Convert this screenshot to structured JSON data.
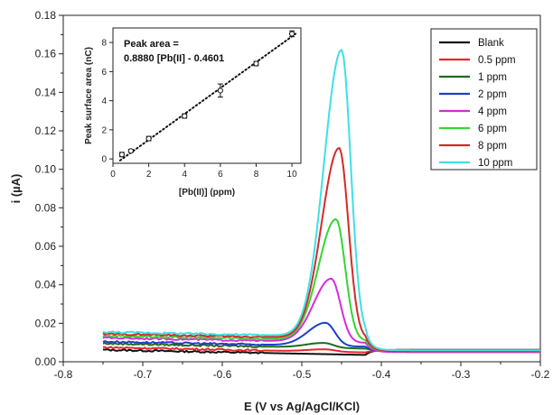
{
  "chart_data": [
    {
      "type": "line",
      "xlabel": "E (V vs Ag/AgCl/KCl)",
      "ylabel": "i (µA)",
      "xlim": [
        -0.8,
        -0.2
      ],
      "ylim": [
        0,
        0.18
      ],
      "x_ticks": [
        "-0.8",
        "-0.7",
        "-0.6",
        "-0.5",
        "-0.4",
        "-0.3",
        "-0.2"
      ],
      "x_tick_values": [
        -0.8,
        -0.7,
        -0.6,
        -0.5,
        -0.4,
        -0.3,
        -0.2
      ],
      "y_ticks": [
        "0.00",
        "0.02",
        "0.04",
        "0.06",
        "0.08",
        "0.10",
        "0.12",
        "0.14",
        "0.16",
        "0.18"
      ],
      "y_tick_values": [
        0,
        0.02,
        0.04,
        0.06,
        0.08,
        0.1,
        0.12,
        0.14,
        0.16,
        0.18
      ],
      "grid": false,
      "legend_position": "top-right",
      "x_range_data": [
        -0.75,
        -0.2
      ],
      "series": [
        {
          "name": "Blank",
          "color": "#111111",
          "baseline": 0.0062,
          "peak": 0.0,
          "end": 0.0062
        },
        {
          "name": "0.5 ppm",
          "color": "#e8262b",
          "baseline": 0.0075,
          "peak": 0.0012,
          "end": 0.0058
        },
        {
          "name": "1 ppm",
          "color": "#1e6b1e",
          "baseline": 0.0095,
          "peak": 0.0025,
          "end": 0.006
        },
        {
          "name": "2 ppm",
          "color": "#1f3fc8",
          "baseline": 0.0105,
          "peak": 0.012,
          "end": 0.0055
        },
        {
          "name": "4 ppm",
          "color": "#d82bd8",
          "baseline": 0.0125,
          "peak": 0.033,
          "end": 0.005
        },
        {
          "name": "6 ppm",
          "color": "#33d633",
          "baseline": 0.0135,
          "peak": 0.063,
          "end": 0.0055
        },
        {
          "name": "8 ppm",
          "color": "#d42a2a",
          "baseline": 0.0145,
          "peak": 0.099,
          "end": 0.0055
        },
        {
          "name": "10 ppm",
          "color": "#3fe0e6",
          "baseline": 0.0155,
          "peak": 0.149,
          "end": 0.006
        }
      ],
      "peak_positions": [
        -0.47,
        -0.47,
        -0.472,
        -0.47,
        -0.463,
        -0.457,
        -0.453,
        -0.45
      ]
    },
    {
      "type": "scatter",
      "xlabel": "[Pb(II)] (ppm)",
      "ylabel": "Peak surface area (nC)",
      "xlim": [
        0,
        10.5
      ],
      "ylim": [
        -0.3,
        9
      ],
      "x_ticks": [
        "0",
        "2",
        "4",
        "6",
        "8",
        "10"
      ],
      "x_tick_values": [
        0,
        2,
        4,
        6,
        8,
        10
      ],
      "y_ticks": [
        "0",
        "2",
        "4",
        "6",
        "8"
      ],
      "y_tick_values": [
        0,
        2,
        4,
        6,
        8
      ],
      "x": [
        0.5,
        1,
        2,
        4,
        6,
        8,
        10
      ],
      "y": [
        0.3,
        0.55,
        1.4,
        2.95,
        4.7,
        6.55,
        8.6
      ],
      "err": [
        0.15,
        0.1,
        0.15,
        0.15,
        0.45,
        0.15,
        0.2
      ],
      "fit": {
        "slope": 0.888,
        "intercept": -0.4601
      },
      "annotation": [
        "Peak area =",
        "0.8880 [Pb(II] - 0.4601"
      ]
    }
  ]
}
